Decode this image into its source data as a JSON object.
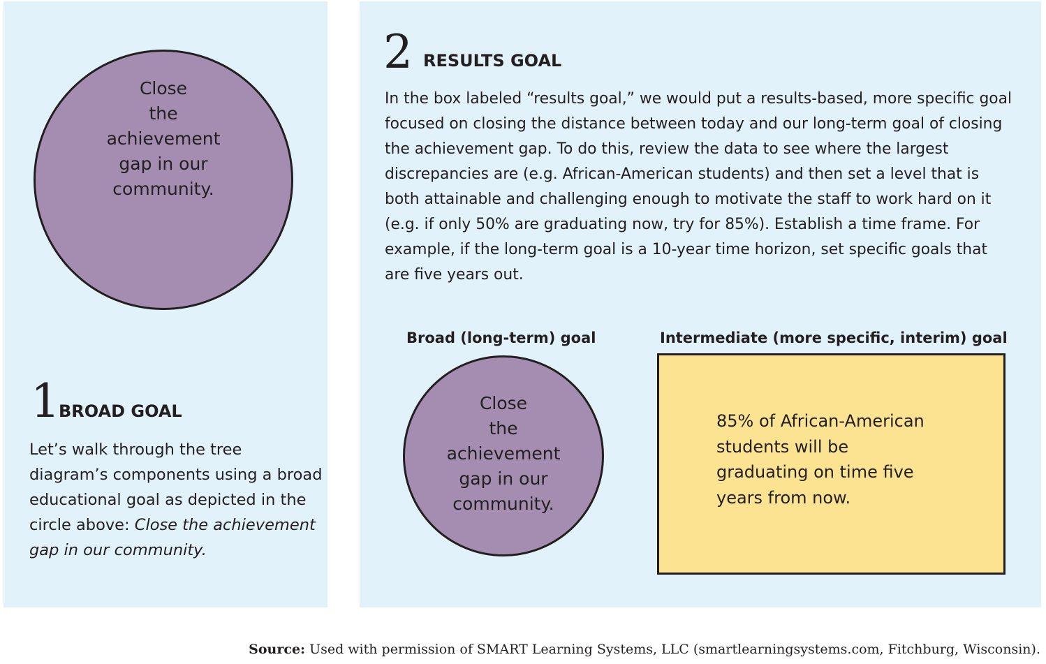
{
  "step1": {
    "number": "1",
    "title": "BROAD GOAL",
    "circle_text": "Close\nthe\nachievement\ngap in our\ncommunity.",
    "body": "Let’s walk through the tree diagram’s components using a broad educational goal as depicted in the circle above: ",
    "body_italic": "Close the achievement gap in our community."
  },
  "step2": {
    "number": "2",
    "title": "RESULTS GOAL",
    "body": "In the box labeled “results goal,” we would put a results-based, more specific goal focused on closing the distance between today and our long-term goal of closing the achievement gap. To do this, review the data to see where the largest discrepancies are (e.g. African-American students) and then set a level that is both attainable and challenging enough to motivate the staff to work hard on it (e.g. if only 50% are graduating now, try for 85%). Establish a time frame. For example, if the long-term goal is a 10-year time horizon, set specific goals that are five years out.",
    "broad_label": "Broad (long-term) goal",
    "intermediate_label": "Intermediate (more specific, interim) goal",
    "circle_text": "Close\nthe\nachievement\ngap in our\ncommunity.",
    "box_text": "85% of African-American\nstudents will be\ngraduating on time five\nyears from now."
  },
  "source": {
    "label": "Source:",
    "text": " Used with permission of SMART Learning Systems, LLC (smartlearningsystems.com, Fitchburg, Wisconsin)."
  },
  "colors": {
    "panel_background": "#e2f2fb",
    "circle_fill": "#a48db1",
    "box_fill": "#fbe392",
    "text": "#231f20"
  }
}
